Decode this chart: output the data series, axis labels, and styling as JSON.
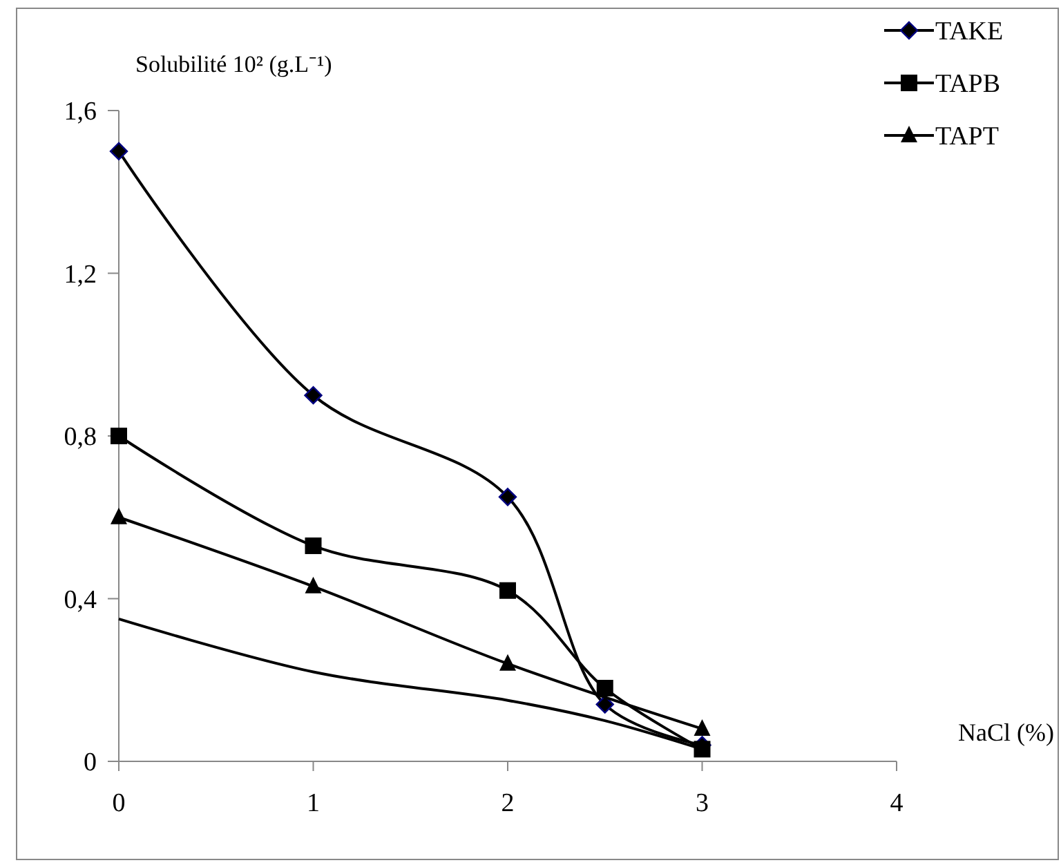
{
  "chart_data": {
    "type": "line",
    "ylabel": "Solubilité 10² (g.L⁻¹)",
    "xlabel": "NaCl  (%)",
    "xlim": [
      0,
      4
    ],
    "xticks": [
      0,
      1,
      2,
      3,
      4
    ],
    "ylim": [
      0,
      1.6
    ],
    "yticks": [
      0,
      {
        "value": 0.4,
        "label": "0,4"
      },
      {
        "value": 0.8,
        "label": "0,8"
      },
      {
        "value": 1.2,
        "label": "1,2"
      },
      {
        "value": 1.6,
        "label": "1,6"
      }
    ],
    "grid": false,
    "legend": "top right",
    "line_style": "solid",
    "series": [
      {
        "name": "TAKE",
        "color": "#000000",
        "marker": "diamond",
        "x": [
          0,
          1,
          2,
          2.5,
          3
        ],
        "values": [
          1.5,
          0.9,
          0.65,
          0.14,
          0.04
        ]
      },
      {
        "name": "TAPB",
        "color": "#000000",
        "marker": "square",
        "x": [
          0,
          1,
          2,
          2.5,
          3
        ],
        "values": [
          0.8,
          0.53,
          0.42,
          0.18,
          0.03
        ]
      },
      {
        "name": "TAPT",
        "color": "#000000",
        "marker": "triangle",
        "x": [
          0,
          1,
          2,
          3
        ],
        "values": [
          0.6,
          0.43,
          0.24,
          0.08
        ]
      },
      {
        "color": "#000000",
        "marker": "none",
        "x": [
          0,
          1,
          2,
          2.5,
          3
        ],
        "values": [
          0.35,
          0.22,
          0.15,
          0.1,
          0.03
        ]
      }
    ]
  }
}
